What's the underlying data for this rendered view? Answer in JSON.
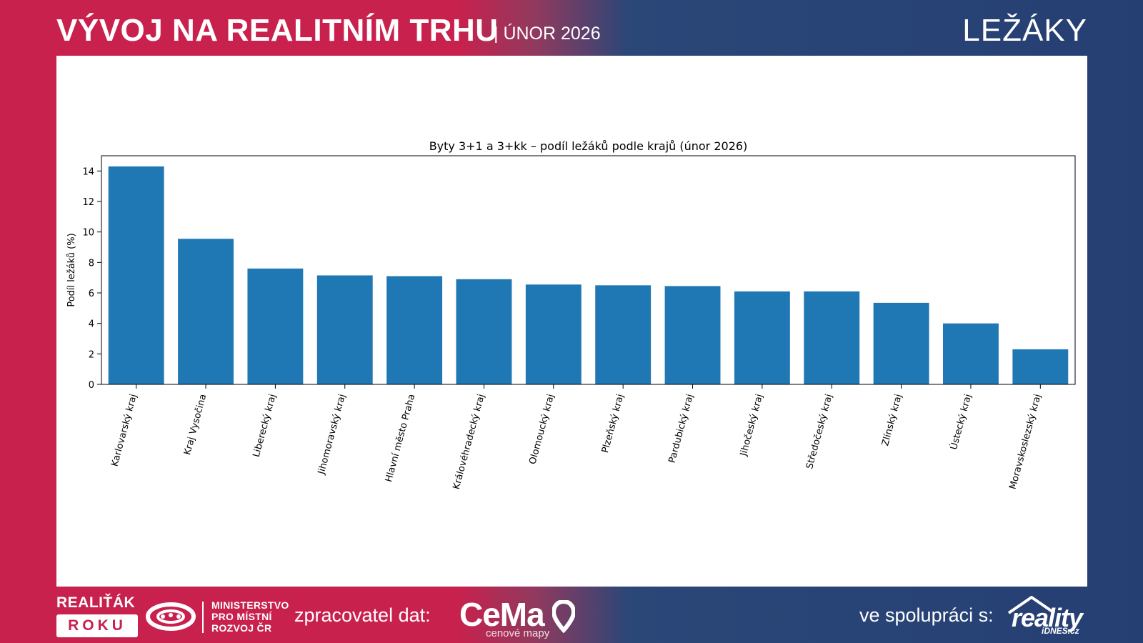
{
  "header": {
    "title": "VÝVOJ NA REALITNÍM TRHU",
    "subtitle": "| ÚNOR 2026",
    "topic": "LEŽÁKY"
  },
  "footer": {
    "realitak": "REALIŤÁK",
    "roku": "ROKU",
    "ministry_lines": [
      "MINISTERSTVO",
      "PRO MÍSTNÍ",
      "ROZVOJ ČR"
    ],
    "processor_label": "zpracovatel dat:",
    "cemap_name": "CeMa",
    "cemap_tagline": "cenové mapy",
    "partner_label": "ve spolupráci s:",
    "reality_name": "reality",
    "reality_sub": "iDNES.cz"
  },
  "colors": {
    "bar": "#1f77b4",
    "crimson": "#c8214d",
    "navy": "#263f73"
  },
  "chart_data": {
    "type": "bar",
    "title": "Byty 3+1 a 3+kk – podíl ležáků podle krajů (únor 2026)",
    "xlabel": "",
    "ylabel": "Podíl ležáků (%)",
    "ylim": [
      0,
      15
    ],
    "yticks": [
      0,
      2,
      4,
      6,
      8,
      10,
      12,
      14
    ],
    "categories": [
      "Karlovarský kraj",
      "Kraj Vysočina",
      "Liberecký kraj",
      "Jihomoravský kraj",
      "Hlavní město Praha",
      "Královéhradecký kraj",
      "Olomoucký kraj",
      "Plzeňský kraj",
      "Pardubický kraj",
      "Jihočeský kraj",
      "Středočeský kraj",
      "Zlínský kraj",
      "Ústecký kraj",
      "Moravskoslezský kraj"
    ],
    "values": [
      14.3,
      9.55,
      7.6,
      7.15,
      7.1,
      6.9,
      6.55,
      6.5,
      6.45,
      6.1,
      6.1,
      5.35,
      4.0,
      2.3
    ]
  }
}
